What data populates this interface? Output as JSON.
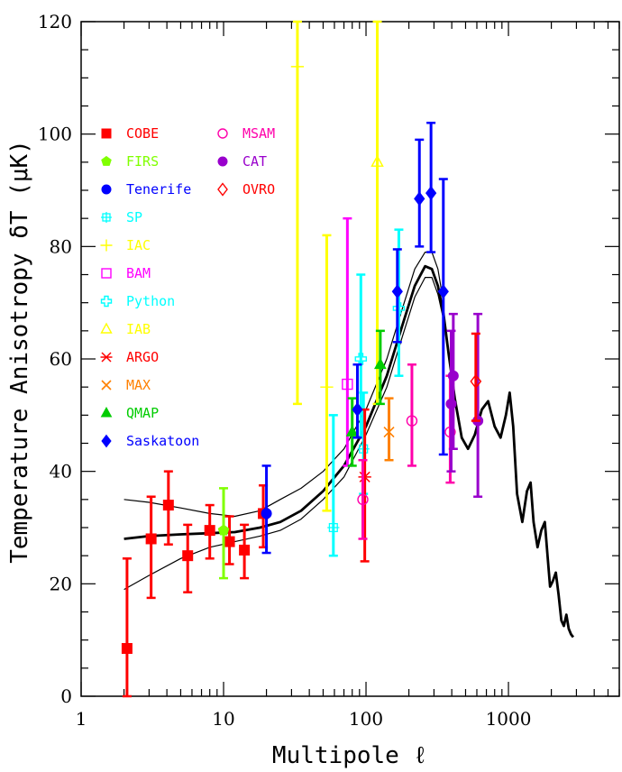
{
  "chart_data": {
    "type": "scatter",
    "title": "",
    "xlabel": "Multipole ℓ",
    "ylabel": "Temperature Anisotropy  δT (μK)",
    "xscale": "log",
    "xlim": [
      1,
      6000
    ],
    "ylim": [
      0,
      120
    ],
    "x_ticks": [
      1,
      10,
      100,
      1000
    ],
    "x_tick_labels": [
      "1",
      "10",
      "100",
      "1000"
    ],
    "y_ticks": [
      0,
      20,
      40,
      60,
      80,
      100,
      120
    ],
    "y_tick_labels": [
      "0",
      "20",
      "40",
      "60",
      "80",
      "100",
      "120"
    ],
    "grid": false,
    "legend_position": "left",
    "series": [
      {
        "name": "COBE",
        "color": "#ff0000",
        "marker": "filled-square",
        "points": [
          {
            "x": 2.1,
            "y": 8.5,
            "lo": 0,
            "hi": 24.5
          },
          {
            "x": 3.1,
            "y": 28,
            "lo": 17.5,
            "hi": 35.5
          },
          {
            "x": 4.1,
            "y": 34,
            "lo": 27,
            "hi": 40
          },
          {
            "x": 5.6,
            "y": 25,
            "lo": 18.5,
            "hi": 30.5
          },
          {
            "x": 8.0,
            "y": 29.5,
            "lo": 24.5,
            "hi": 34
          },
          {
            "x": 11,
            "y": 27.5,
            "lo": 23.5,
            "hi": 32
          },
          {
            "x": 14,
            "y": 26,
            "lo": 21,
            "hi": 30.5
          },
          {
            "x": 19,
            "y": 32.5,
            "lo": 26.5,
            "hi": 37.5
          }
        ]
      },
      {
        "name": "FIRS",
        "color": "#80ff00",
        "marker": "filled-pentagon",
        "points": [
          {
            "x": 10,
            "y": 29.5,
            "lo": 21,
            "hi": 37
          }
        ]
      },
      {
        "name": "Tenerife",
        "color": "#0000ff",
        "marker": "filled-circle",
        "points": [
          {
            "x": 20,
            "y": 32.5,
            "lo": 25.5,
            "hi": 41
          }
        ]
      },
      {
        "name": "SP",
        "color": "#00ffff",
        "marker": "open-square-cross",
        "points": [
          {
            "x": 59,
            "y": 30,
            "lo": 25,
            "hi": 50
          },
          {
            "x": 96,
            "y": 44,
            "lo": 36,
            "hi": 54
          }
        ]
      },
      {
        "name": "IAC",
        "color": "#ffff00",
        "marker": "plus",
        "points": [
          {
            "x": 33,
            "y": 112,
            "lo": 52,
            "hi": 120
          },
          {
            "x": 53,
            "y": 55,
            "lo": 33,
            "hi": 82
          }
        ]
      },
      {
        "name": "BAM",
        "color": "#ff00ff",
        "marker": "open-square",
        "points": [
          {
            "x": 74,
            "y": 55.5,
            "lo": 41,
            "hi": 85
          }
        ]
      },
      {
        "name": "Python",
        "color": "#00ffff",
        "marker": "open-cross",
        "points": [
          {
            "x": 92,
            "y": 60,
            "lo": 46,
            "hi": 75
          },
          {
            "x": 170,
            "y": 69,
            "lo": 57,
            "hi": 83
          }
        ]
      },
      {
        "name": "IAB",
        "color": "#ffff00",
        "marker": "open-triangle",
        "points": [
          {
            "x": 120,
            "y": 95,
            "lo": 52,
            "hi": 120
          }
        ]
      },
      {
        "name": "ARGO",
        "color": "#ff0000",
        "marker": "asterisk",
        "points": [
          {
            "x": 98,
            "y": 39,
            "lo": 24,
            "hi": 51
          }
        ]
      },
      {
        "name": "MAX",
        "color": "#ff8000",
        "marker": "x-cross",
        "points": [
          {
            "x": 145,
            "y": 47,
            "lo": 42,
            "hi": 53
          }
        ]
      },
      {
        "name": "QMAP",
        "color": "#00cc00",
        "marker": "filled-triangle",
        "points": [
          {
            "x": 80,
            "y": 47,
            "lo": 41,
            "hi": 53
          },
          {
            "x": 126,
            "y": 59,
            "lo": 52,
            "hi": 65
          }
        ]
      },
      {
        "name": "Saskatoon",
        "color": "#0000ff",
        "marker": "filled-diamond",
        "points": [
          {
            "x": 87,
            "y": 51,
            "lo": 46,
            "hi": 59
          },
          {
            "x": 166,
            "y": 72,
            "lo": 63,
            "hi": 79.5
          },
          {
            "x": 237,
            "y": 88.5,
            "lo": 80,
            "hi": 99
          },
          {
            "x": 286,
            "y": 89.5,
            "lo": 79,
            "hi": 102
          },
          {
            "x": 349,
            "y": 72,
            "lo": 43,
            "hi": 92
          }
        ]
      },
      {
        "name": "MSAM",
        "color": "#ff00aa",
        "marker": "open-circle",
        "points": [
          {
            "x": 95,
            "y": 35,
            "lo": 28,
            "hi": 42
          },
          {
            "x": 210,
            "y": 49,
            "lo": 41,
            "hi": 59
          },
          {
            "x": 390,
            "y": 47,
            "lo": 38,
            "hi": 57
          }
        ]
      },
      {
        "name": "CAT",
        "color": "#9900cc",
        "marker": "filled-circle",
        "points": [
          {
            "x": 396,
            "y": 52,
            "lo": 40,
            "hi": 65
          },
          {
            "x": 410,
            "y": 57,
            "lo": 44,
            "hi": 68
          },
          {
            "x": 610,
            "y": 49,
            "lo": 35.5,
            "hi": 68
          }
        ]
      },
      {
        "name": "OVRO",
        "color": "#ff0000",
        "marker": "open-diamond",
        "points": [
          {
            "x": 590,
            "y": 56,
            "lo": 49,
            "hi": 64.5
          }
        ]
      }
    ],
    "model_curves": [
      {
        "style": "thick",
        "color": "#000000",
        "x": [
          2,
          3,
          5,
          8,
          12,
          18,
          25,
          35,
          50,
          70,
          100,
          140,
          180,
          220,
          260,
          290,
          320,
          350,
          380,
          420,
          470,
          520,
          580,
          650,
          720,
          800,
          880,
          960,
          1020,
          1080,
          1150,
          1250,
          1350,
          1430,
          1500,
          1600,
          1700,
          1800,
          1880,
          1960,
          2050,
          2150,
          2250,
          2350,
          2450,
          2550,
          2650,
          2750,
          2850
        ],
        "y": [
          28,
          28.5,
          28.8,
          29,
          29.2,
          30,
          31,
          33,
          36.5,
          41,
          48,
          57,
          66,
          73,
          76.5,
          76,
          73,
          68,
          61,
          53,
          46,
          44,
          46.5,
          51,
          52.5,
          48,
          46,
          50,
          54,
          48,
          36,
          31,
          36.5,
          38,
          31,
          26.5,
          29.5,
          31,
          25,
          19.5,
          20.5,
          22,
          18,
          13.5,
          12.5,
          14.5,
          12,
          11,
          10.5
        ]
      },
      {
        "style": "thin",
        "color": "#000000",
        "x": [
          2,
          3,
          5,
          8,
          12,
          18,
          25,
          35,
          50,
          70,
          100,
          140,
          180,
          220,
          260,
          290,
          320,
          350
        ],
        "y": [
          35,
          34.5,
          33.5,
          32.5,
          32,
          33,
          35,
          37,
          40,
          44,
          51,
          60,
          69,
          76,
          79,
          79,
          76,
          70
        ]
      },
      {
        "style": "thin",
        "color": "#000000",
        "x": [
          2,
          3,
          5,
          8,
          12,
          18,
          25,
          35,
          50,
          70,
          100,
          140,
          180,
          220,
          260,
          290,
          320,
          350
        ],
        "y": [
          19,
          21.5,
          24.5,
          26.5,
          27.5,
          28.5,
          29.5,
          31.5,
          35,
          39,
          46.5,
          55,
          64,
          71,
          74.5,
          74.5,
          71.5,
          67
        ]
      }
    ]
  }
}
